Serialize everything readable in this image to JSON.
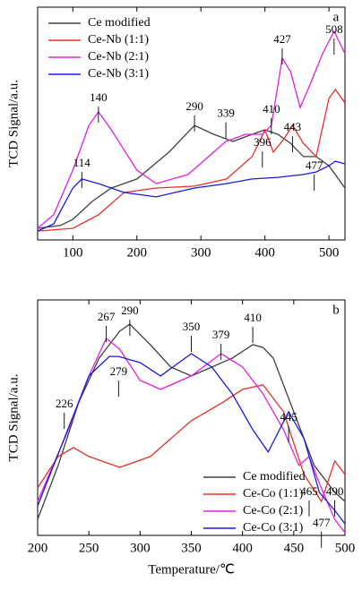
{
  "chart_data": [
    {
      "type": "line",
      "panel_label": "a",
      "ylabel": "TCD Signal/a.u.",
      "xlim": [
        45,
        525
      ],
      "xticks": [
        100,
        200,
        300,
        400,
        500
      ],
      "ylim": [
        0,
        100
      ],
      "legend": "upper left",
      "series": [
        {
          "name": "Ce modified",
          "color": "#404040",
          "x": [
            45,
            80,
            100,
            130,
            160,
            200,
            250,
            290,
            320,
            350,
            380,
            400,
            420,
            440,
            460,
            480,
            500,
            525
          ],
          "values": [
            5,
            6.2,
            8.8,
            16.5,
            22.3,
            26.2,
            37.7,
            49.2,
            45.4,
            42.3,
            45.4,
            47.3,
            45.4,
            41.5,
            35.8,
            35.8,
            31.9,
            22.3
          ]
        },
        {
          "name": "Ce-Nb (1:1)",
          "color": "#e8302a",
          "x": [
            45,
            100,
            140,
            180,
            230,
            290,
            340,
            380,
            400,
            413,
            430,
            443,
            460,
            480,
            500,
            510,
            525
          ],
          "values": [
            3.8,
            5,
            10.8,
            20.4,
            22.3,
            23.1,
            26.2,
            35.8,
            47.3,
            37.7,
            43.5,
            49.2,
            41.5,
            35.8,
            60.8,
            64.6,
            58.8
          ]
        },
        {
          "name": "Ce-Nb (2:1)",
          "color": "#e020e0",
          "x": [
            45,
            70,
            100,
            125,
            140,
            160,
            200,
            230,
            280,
            339,
            370,
            396,
            410,
            427,
            440,
            455,
            470,
            490,
            508,
            525
          ],
          "values": [
            5,
            10.8,
            30,
            49.2,
            55,
            47.3,
            30,
            24.2,
            28.1,
            42.3,
            45.4,
            45.4,
            49.2,
            78.1,
            72.3,
            56.9,
            66.5,
            80,
            89.6,
            80
          ]
        },
        {
          "name": "Ce-Nb (3:1)",
          "color": "#1a1adf",
          "x": [
            45,
            70,
            100,
            114,
            140,
            180,
            230,
            290,
            340,
            380,
            420,
            460,
            480,
            500,
            510,
            525
          ],
          "values": [
            3.8,
            6.9,
            22.3,
            26.2,
            24.2,
            20.4,
            18.5,
            22.3,
            24.2,
            26.2,
            26.9,
            28.1,
            29.2,
            31.9,
            33.8,
            32.7
          ]
        }
      ],
      "annotations": [
        {
          "text": "140",
          "x": 140,
          "y": 60.8
        },
        {
          "text": "114",
          "x": 114,
          "y": 32.7
        },
        {
          "text": "290",
          "x": 290,
          "y": 57
        },
        {
          "text": "339",
          "x": 339,
          "y": 54
        },
        {
          "text": "396",
          "x": 396,
          "y": 41.5
        },
        {
          "text": "410",
          "x": 410,
          "y": 55.8
        },
        {
          "text": "443",
          "x": 443,
          "y": 48
        },
        {
          "text": "427",
          "x": 427,
          "y": 85.8
        },
        {
          "text": "508",
          "x": 508,
          "y": 90
        },
        {
          "text": "477",
          "x": 477,
          "y": 31.5
        }
      ]
    },
    {
      "type": "line",
      "panel_label": "b",
      "ylabel": "TCD Signal/a.u.",
      "xlabel": "Temperature/℃",
      "xlim": [
        200,
        500
      ],
      "xticks": [
        200,
        250,
        300,
        350,
        400,
        450,
        500
      ],
      "ylim": [
        0,
        100
      ],
      "legend": "lower right",
      "series": [
        {
          "name": "Ce modified",
          "color": "#404040",
          "x": [
            200,
            220,
            240,
            260,
            280,
            290,
            310,
            330,
            350,
            370,
            390,
            410,
            420,
            430,
            450,
            470,
            490,
            500
          ],
          "values": [
            6.8,
            29.7,
            56.3,
            75.3,
            86.7,
            89.7,
            81,
            71.5,
            67.7,
            71.5,
            75.3,
            81,
            79.8,
            75.3,
            52.5,
            29.7,
            18.3,
            14.4
          ]
        },
        {
          "name": "Ce-Co (1:1)",
          "color": "#e8302a",
          "x": [
            200,
            220,
            235,
            250,
            280,
            310,
            350,
            380,
            400,
            420,
            440,
            460,
            477,
            490,
            500
          ],
          "values": [
            20.2,
            33.5,
            37.3,
            33.5,
            28.9,
            33.5,
            48.7,
            56.3,
            62,
            63.9,
            52.5,
            25.9,
            14.4,
            31.6,
            25.9
          ]
        },
        {
          "name": "Ce-Co (2:1)",
          "color": "#e020e0",
          "x": [
            200,
            230,
            250,
            267,
            280,
            300,
            320,
            350,
            379,
            400,
            420,
            440,
            455,
            465,
            475,
            490,
            500
          ],
          "values": [
            14.4,
            44.9,
            67.7,
            83.7,
            79.1,
            65.8,
            62,
            67.7,
            77.2,
            71.5,
            60.1,
            44.9,
            29.7,
            33.5,
            22.1,
            6.8,
            1.1
          ]
        },
        {
          "name": "Ce-Co (3:1)",
          "color": "#1a1adf",
          "x": [
            200,
            226,
            250,
            270,
            279,
            300,
            320,
            350,
            370,
            390,
            410,
            425,
            445,
            460,
            475,
            490,
            500
          ],
          "values": [
            12.5,
            41.1,
            67.7,
            76,
            76,
            73.4,
            67.7,
            77.2,
            71.5,
            60.1,
            44.9,
            35.4,
            52.5,
            41.1,
            18.3,
            10.6,
            4.9
          ]
        }
      ],
      "annotations": [
        {
          "text": "267",
          "x": 267,
          "y": 92.4
        },
        {
          "text": "290",
          "x": 290,
          "y": 95
        },
        {
          "text": "279",
          "x": 279,
          "y": 69.2
        },
        {
          "text": "350",
          "x": 350,
          "y": 88.2
        },
        {
          "text": "379",
          "x": 379,
          "y": 84.8
        },
        {
          "text": "410",
          "x": 410,
          "y": 92
        },
        {
          "text": "226",
          "x": 226,
          "y": 55.5
        },
        {
          "text": "445",
          "x": 445,
          "y": 49.8
        },
        {
          "text": "465",
          "x": 465,
          "y": 18.3
        },
        {
          "text": "490",
          "x": 490,
          "y": 18.3
        },
        {
          "text": "477",
          "x": 477,
          "y": 5
        }
      ]
    }
  ]
}
